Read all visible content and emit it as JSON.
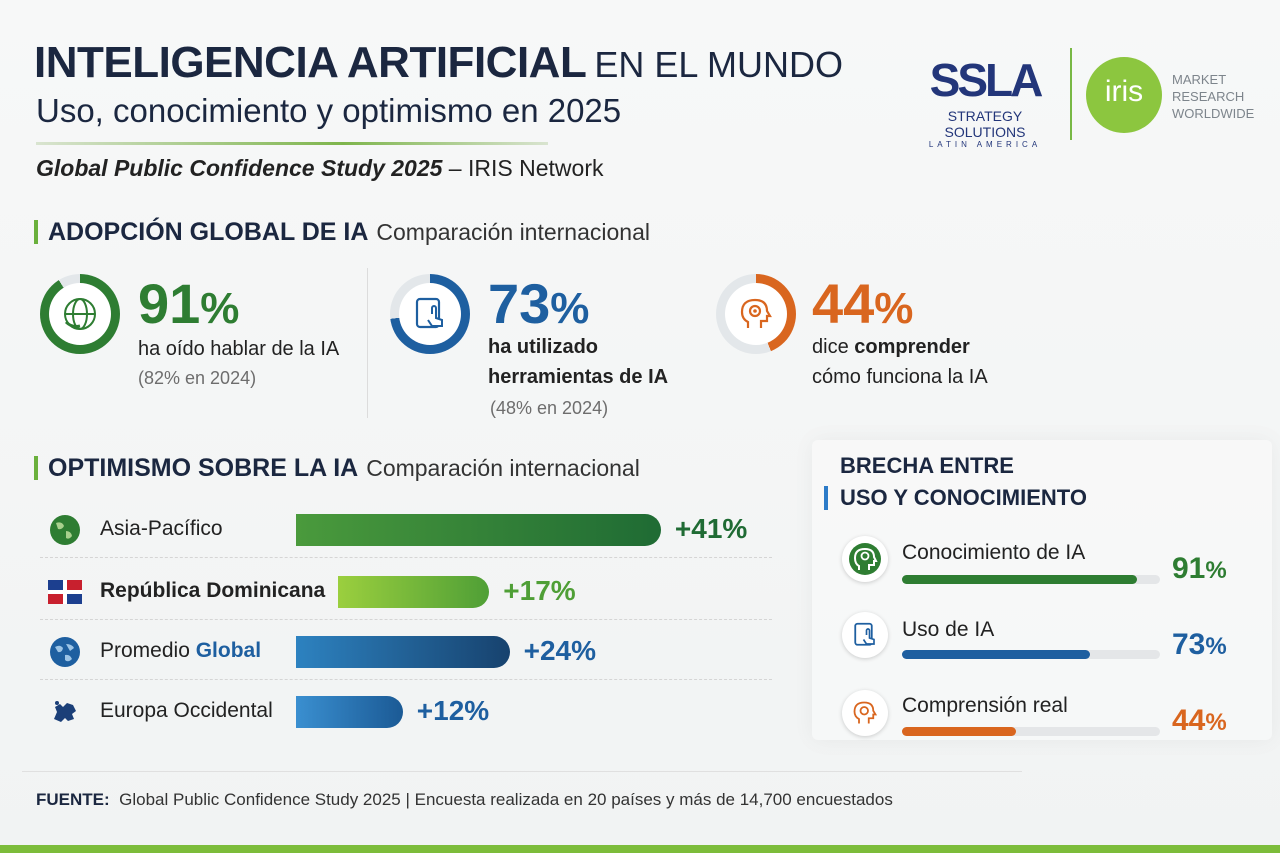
{
  "header": {
    "title_bold": "INTELIGENCIA ARTIFICIAL",
    "title_light": "EN EL MUNDO",
    "subtitle": "Uso, conocimiento y optimismo en 2025",
    "study_name": "Global Public Confidence Study 2025",
    "study_sep": " – ",
    "study_org": "IRIS Network"
  },
  "logos": {
    "ssla_mark": "SSLA",
    "ssla_line1": "STRATEGY SOLUTIONS",
    "ssla_line2": "LATIN AMERICA",
    "iris_mark": "iris",
    "iris_line1": "MARKET",
    "iris_line2": "RESEARCH",
    "iris_line3": "WORLDWIDE"
  },
  "adoption": {
    "heading": "ADOPCIÓN GLOBAL DE IA",
    "subheading": "Comparación internacional",
    "kpis": [
      {
        "value": "91",
        "unit": "%",
        "line1": "ha oído hablar de la IA",
        "line2": "",
        "note": "(82% en 2024)",
        "color": "#2e7d32",
        "icon": "globe-hand-icon",
        "fill": 0.91
      },
      {
        "value": "73",
        "unit": "%",
        "line1": "ha utilizado",
        "line2": "herramientas de IA",
        "note": "(48% en 2024)",
        "color": "#1e5fa0",
        "icon": "tablet-touch-icon",
        "fill": 0.73
      },
      {
        "value": "44",
        "unit": "%",
        "line1_pre": "dice ",
        "line1_bold": "comprender",
        "line2": "cómo funciona la IA",
        "note": "",
        "color": "#d9661f",
        "icon": "head-gear-icon",
        "fill": 0.44
      }
    ]
  },
  "optimism": {
    "heading": "OPTIMISMO SOBRE LA IA",
    "subheading": "Comparación internacional"
  },
  "gap": {
    "title_line1": "BRECHA ENTRE",
    "title_line2": "USO Y CONOCIMIENTO",
    "items": [
      {
        "label": "Conocimiento de IA",
        "value": "91",
        "unit": "%",
        "fraction": 0.91,
        "color": "#2e7d32",
        "icon": "head-idea-icon"
      },
      {
        "label": "Uso de IA",
        "value": "73",
        "unit": "%",
        "fraction": 0.73,
        "color": "#1e5fa0",
        "icon": "tablet-touch-icon"
      },
      {
        "label": "Comprensión real",
        "value": "44",
        "unit": "%",
        "fraction": 0.44,
        "color": "#d9661f",
        "icon": "head-gear-icon"
      }
    ]
  },
  "chart_data": {
    "type": "bar",
    "orientation": "horizontal",
    "title": "OPTIMISMO SOBRE LA IA",
    "categories": [
      "Asia-Pacífico",
      "República Dominicana",
      "Promedio Global",
      "Europa Occidental"
    ],
    "values": [
      41,
      17,
      24,
      12
    ],
    "value_labels": [
      "+41%",
      "+17%",
      "+24%",
      "+12%"
    ],
    "label_parts": [
      {
        "pre": "Asia-Pacífico",
        "emph": "",
        "style": ""
      },
      {
        "pre": "",
        "emph": "República Dominicana",
        "style": "bold"
      },
      {
        "pre": "Promedio ",
        "emph": "Global",
        "style": "blue"
      },
      {
        "pre": "Europa Occidental",
        "emph": "",
        "style": ""
      }
    ],
    "colors": [
      [
        "#4a9a3c",
        "#1f6b34"
      ],
      [
        "#9bcf3e",
        "#4f9f36"
      ],
      [
        "#2d82c0",
        "#17426e"
      ],
      [
        "#3a8fd0",
        "#1b5a95"
      ]
    ],
    "value_colors": [
      "#1f6b34",
      "#4f9f36",
      "#1e5fa0",
      "#1e5fa0"
    ],
    "icons": [
      "globe-asia-icon",
      "flag-dominican-icon",
      "globe-icon",
      "europe-map-icon"
    ]
  },
  "footer": {
    "label": "FUENTE:",
    "text": "Global Public Confidence Study 2025  |  Encuesta realizada en 20 países y más de 14,700 encuestados"
  }
}
